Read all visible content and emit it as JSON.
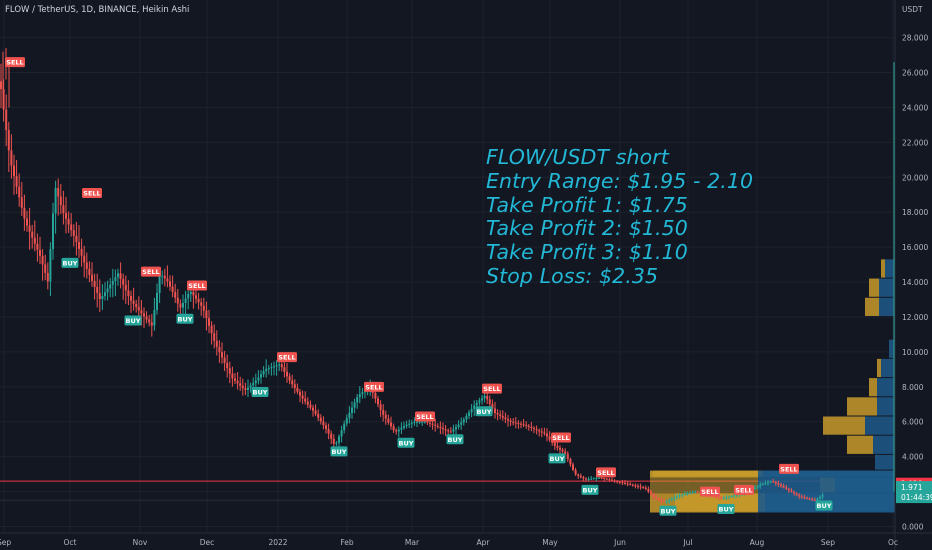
{
  "header": {
    "title": "FLOW / TetherUS, 1D, BINANCE, Heikin Ashi"
  },
  "annotation": {
    "lines": [
      "FLOW/USDT short",
      "Entry Range: $1.95 - 2.10",
      "Take Profit 1: $1.75",
      "Take Profit 2: $1.50",
      "Take Profit 3: $1.10",
      "Stop Loss: $2.35"
    ]
  },
  "colors": {
    "background": "#131722",
    "grid": "#1e222d",
    "up": "#26a69a",
    "down": "#ef5350",
    "annotation": "#22b8d6",
    "price_line": "#f23645",
    "price_badge": "#26a69a",
    "volume_profile_blue": "#1e5b8a",
    "volume_profile_gold": "#c89a2a"
  },
  "chart_data": {
    "type": "candlestick",
    "symbol": "FLOW / TetherUS",
    "timeframe": "1D",
    "exchange": "BINANCE",
    "style": "Heikin Ashi",
    "y_axis_label": "USDT",
    "y_ticks": [
      "28.000",
      "26.000",
      "24.000",
      "22.000",
      "20.000",
      "18.000",
      "16.000",
      "14.000",
      "12.000",
      "10.000",
      "8.000",
      "6.000",
      "4.000",
      "2.000",
      "0.000"
    ],
    "ylim": [
      0,
      29
    ],
    "x_ticks": [
      "Sep",
      "Oct",
      "Nov",
      "Dec",
      "2022",
      "Feb",
      "Mar",
      "Apr",
      "May",
      "Jun",
      "Jul",
      "Aug",
      "Sep",
      "Oc"
    ],
    "price_badges": [
      {
        "label": "2.010",
        "value": 2.01
      },
      {
        "label": "1.971",
        "value": 1.971
      },
      {
        "label": "01:44:39",
        "value": 1.971
      }
    ],
    "close_trend": [
      {
        "t": 0,
        "v": 25.5
      },
      {
        "t": 10,
        "v": 21.0
      },
      {
        "t": 25,
        "v": 17.5
      },
      {
        "t": 40,
        "v": 15.5
      },
      {
        "t": 48,
        "v": 14.0
      },
      {
        "t": 55,
        "v": 19.5
      },
      {
        "t": 63,
        "v": 18.0
      },
      {
        "t": 75,
        "v": 16.5
      },
      {
        "t": 85,
        "v": 15.0
      },
      {
        "t": 100,
        "v": 13.0
      },
      {
        "t": 118,
        "v": 14.5
      },
      {
        "t": 130,
        "v": 13.0
      },
      {
        "t": 140,
        "v": 12.3
      },
      {
        "t": 152,
        "v": 11.5
      },
      {
        "t": 160,
        "v": 14.5
      },
      {
        "t": 168,
        "v": 14.0
      },
      {
        "t": 180,
        "v": 12.5
      },
      {
        "t": 190,
        "v": 13.5
      },
      {
        "t": 203,
        "v": 12.5
      },
      {
        "t": 215,
        "v": 10.5
      },
      {
        "t": 232,
        "v": 8.5
      },
      {
        "t": 245,
        "v": 7.8
      },
      {
        "t": 255,
        "v": 8.3
      },
      {
        "t": 265,
        "v": 9.0
      },
      {
        "t": 280,
        "v": 9.3
      },
      {
        "t": 288,
        "v": 8.5
      },
      {
        "t": 300,
        "v": 7.5
      },
      {
        "t": 315,
        "v": 6.5
      },
      {
        "t": 327,
        "v": 5.5
      },
      {
        "t": 335,
        "v": 4.6
      },
      {
        "t": 345,
        "v": 6.0
      },
      {
        "t": 358,
        "v": 7.5
      },
      {
        "t": 370,
        "v": 8.0
      },
      {
        "t": 382,
        "v": 6.5
      },
      {
        "t": 395,
        "v": 5.4
      },
      {
        "t": 405,
        "v": 5.8
      },
      {
        "t": 415,
        "v": 6.0
      },
      {
        "t": 425,
        "v": 6.0
      },
      {
        "t": 438,
        "v": 5.7
      },
      {
        "t": 450,
        "v": 5.4
      },
      {
        "t": 462,
        "v": 6.0
      },
      {
        "t": 475,
        "v": 7.0
      },
      {
        "t": 485,
        "v": 7.5
      },
      {
        "t": 495,
        "v": 6.5
      },
      {
        "t": 510,
        "v": 6.0
      },
      {
        "t": 525,
        "v": 5.8
      },
      {
        "t": 545,
        "v": 5.3
      },
      {
        "t": 555,
        "v": 4.6
      },
      {
        "t": 565,
        "v": 4.2
      },
      {
        "t": 575,
        "v": 3.0
      },
      {
        "t": 585,
        "v": 2.7
      },
      {
        "t": 600,
        "v": 2.8
      },
      {
        "t": 615,
        "v": 2.6
      },
      {
        "t": 630,
        "v": 2.4
      },
      {
        "t": 645,
        "v": 2.2
      },
      {
        "t": 655,
        "v": 1.6
      },
      {
        "t": 665,
        "v": 1.4
      },
      {
        "t": 680,
        "v": 1.8
      },
      {
        "t": 695,
        "v": 2.0
      },
      {
        "t": 710,
        "v": 1.8
      },
      {
        "t": 722,
        "v": 1.6
      },
      {
        "t": 735,
        "v": 1.8
      },
      {
        "t": 748,
        "v": 2.0
      },
      {
        "t": 760,
        "v": 2.4
      },
      {
        "t": 772,
        "v": 2.6
      },
      {
        "t": 785,
        "v": 2.2
      },
      {
        "t": 800,
        "v": 1.7
      },
      {
        "t": 815,
        "v": 1.5
      },
      {
        "t": 825,
        "v": 1.9
      }
    ],
    "signals": [
      {
        "label": "SELL",
        "t": 15,
        "v": 26.6
      },
      {
        "label": "BUY",
        "t": 70,
        "v": 15.1
      },
      {
        "label": "SELL",
        "t": 92,
        "v": 19.1
      },
      {
        "label": "SELL",
        "t": 151,
        "v": 14.6
      },
      {
        "label": "BUY",
        "t": 133,
        "v": 11.8
      },
      {
        "label": "SELL",
        "t": 197,
        "v": 13.8
      },
      {
        "label": "BUY",
        "t": 185,
        "v": 11.9
      },
      {
        "label": "SELL",
        "t": 287,
        "v": 9.7
      },
      {
        "label": "BUY",
        "t": 260,
        "v": 7.7
      },
      {
        "label": "SELL",
        "t": 374,
        "v": 8.0
      },
      {
        "label": "BUY",
        "t": 339,
        "v": 4.3
      },
      {
        "label": "SELL",
        "t": 425,
        "v": 6.3
      },
      {
        "label": "BUY",
        "t": 406,
        "v": 4.8
      },
      {
        "label": "SELL",
        "t": 492,
        "v": 7.9
      },
      {
        "label": "BUY",
        "t": 455,
        "v": 5.0
      },
      {
        "label": "BUY",
        "t": 484,
        "v": 6.6
      },
      {
        "label": "SELL",
        "t": 561,
        "v": 5.1
      },
      {
        "label": "BUY",
        "t": 557,
        "v": 3.9
      },
      {
        "label": "SELL",
        "t": 606,
        "v": 3.1
      },
      {
        "label": "BUY",
        "t": 590,
        "v": 2.1
      },
      {
        "label": "BUY",
        "t": 668,
        "v": 0.9
      },
      {
        "label": "SELL",
        "t": 710,
        "v": 2.0
      },
      {
        "label": "SELL",
        "t": 744,
        "v": 2.1
      },
      {
        "label": "BUY",
        "t": 726,
        "v": 1.0
      },
      {
        "label": "SELL",
        "t": 789,
        "v": 3.3
      },
      {
        "label": "BUY",
        "t": 824,
        "v": 1.2
      }
    ],
    "horizontal_lines": [
      {
        "value": 2.6,
        "color": "#f23645"
      },
      {
        "value": 1.5,
        "color": "#2a2e39"
      }
    ],
    "volume_profile": [
      {
        "low": 0.8,
        "high": 1.9,
        "blue": 130,
        "gold": 90
      },
      {
        "low": 1.9,
        "high": 2.8,
        "blue": 60,
        "gold": 15
      },
      {
        "low": 2.8,
        "high": 3.2,
        "blue": 132,
        "gold": 110
      },
      {
        "low": 3.2,
        "high": 4.1,
        "blue": 20,
        "gold": 0
      },
      {
        "low": 4.1,
        "high": 5.2,
        "blue": 22,
        "gold": 26
      },
      {
        "low": 5.2,
        "high": 6.3,
        "blue": 30,
        "gold": 42
      },
      {
        "low": 6.3,
        "high": 7.4,
        "blue": 18,
        "gold": 30
      },
      {
        "low": 7.4,
        "high": 8.5,
        "blue": 18,
        "gold": 8
      },
      {
        "low": 8.5,
        "high": 9.6,
        "blue": 14,
        "gold": 4
      },
      {
        "low": 9.6,
        "high": 10.7,
        "blue": 6,
        "gold": 0
      },
      {
        "low": 12.0,
        "high": 13.1,
        "blue": 16,
        "gold": 14
      },
      {
        "low": 13.1,
        "high": 14.2,
        "blue": 16,
        "gold": 10
      },
      {
        "low": 14.2,
        "high": 15.3,
        "blue": 10,
        "gold": 4
      }
    ]
  }
}
